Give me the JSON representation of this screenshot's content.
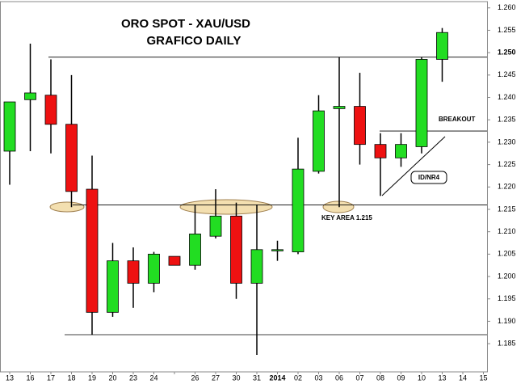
{
  "chart_data": {
    "type": "candlestick",
    "title": "ORO SPOT - XAU/USD",
    "subtitle": "GRAFICO DAILY",
    "annotations": [
      "BREAKOUT",
      "KEY AREA 1.215",
      "ID/NR4"
    ],
    "categories": [
      "13",
      "16",
      "17",
      "18",
      "19",
      "20",
      "23",
      "24",
      null,
      "26",
      "27",
      "30",
      "31",
      "2014",
      "02",
      "03",
      "06",
      "07",
      "08",
      "09",
      "10",
      "13",
      "14",
      "15"
    ],
    "open": [
      1.228,
      1.2395,
      1.2405,
      1.234,
      1.2195,
      1.192,
      1.2035,
      1.1985,
      1.2045,
      1.2025,
      1.209,
      1.2135,
      1.1985,
      1.206,
      1.2055,
      1.2235,
      1.2375,
      1.238,
      1.2295,
      1.2265,
      1.229,
      1.2485,
      null,
      null
    ],
    "high": [
      1.239,
      1.252,
      1.2485,
      1.245,
      1.227,
      1.2075,
      1.2065,
      1.2055,
      1.2045,
      1.216,
      1.2195,
      1.2165,
      1.216,
      1.208,
      1.231,
      1.2405,
      1.249,
      1.2455,
      1.232,
      1.232,
      1.249,
      1.2555,
      null,
      null
    ],
    "low": [
      1.2205,
      1.228,
      1.2275,
      1.2155,
      1.187,
      1.191,
      1.193,
      1.1965,
      1.2025,
      1.2015,
      1.2085,
      1.195,
      1.1825,
      1.2035,
      1.205,
      1.223,
      1.2155,
      1.225,
      1.218,
      1.2245,
      1.2275,
      1.2435,
      null,
      null
    ],
    "close": [
      1.239,
      1.241,
      1.234,
      1.219,
      1.192,
      1.2035,
      1.1985,
      1.205,
      1.2025,
      1.2095,
      1.2135,
      1.1985,
      1.206,
      1.206,
      1.224,
      1.237,
      1.238,
      1.2295,
      1.2265,
      1.2295,
      1.2485,
      1.2545,
      null,
      null
    ],
    "up_color": "#22dd22",
    "down_color": "#ee1111",
    "reference_lines": [
      1.249,
      1.216,
      1.187,
      1.2325
    ],
    "ylim": [
      1.1787,
      1.2614
    ],
    "yticks": [
      {
        "value": 1.185,
        "label": "1.185"
      },
      {
        "value": 1.19,
        "label": "1.190"
      },
      {
        "value": 1.195,
        "label": "1.195"
      },
      {
        "value": 1.2,
        "label": "1.200"
      },
      {
        "value": 1.205,
        "label": "1.205"
      },
      {
        "value": 1.21,
        "label": "1.210"
      },
      {
        "value": 1.215,
        "label": "1.215"
      },
      {
        "value": 1.22,
        "label": "1.220"
      },
      {
        "value": 1.225,
        "label": "1.225"
      },
      {
        "value": 1.23,
        "label": "1.230"
      },
      {
        "value": 1.235,
        "label": "1.235"
      },
      {
        "value": 1.24,
        "label": "1.240"
      },
      {
        "value": 1.245,
        "label": "1.245"
      },
      {
        "value": 1.25,
        "label": "1.250"
      },
      {
        "value": 1.255,
        "label": "1.255"
      },
      {
        "value": 1.26,
        "label": "1.260"
      }
    ]
  }
}
